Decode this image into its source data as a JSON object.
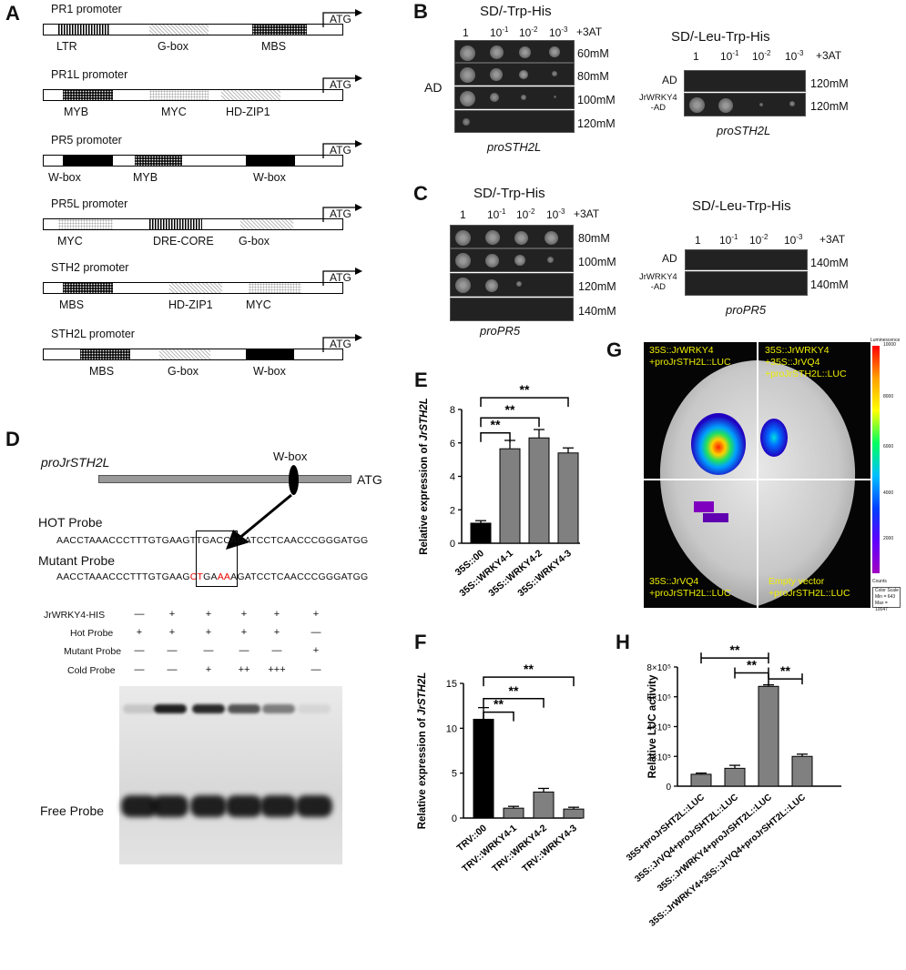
{
  "panels": {
    "A": "A",
    "B": "B",
    "C": "C",
    "D": "D",
    "E": "E",
    "F": "F",
    "G": "G",
    "H": "H"
  },
  "panelA": {
    "atg": "ATG",
    "promoters": [
      {
        "name": "PR1 promoter",
        "elements": [
          "LTR",
          "G-box",
          "MBS"
        ]
      },
      {
        "name": "PR1L promoter",
        "elements": [
          "MYB",
          "MYC",
          "HD-ZIP1"
        ]
      },
      {
        "name": "PR5 promoter",
        "elements": [
          "W-box",
          "MYB",
          "W-box"
        ]
      },
      {
        "name": "PR5L promoter",
        "elements": [
          "MYC",
          "DRE-CORE",
          "G-box"
        ]
      },
      {
        "name": "STH2 promoter",
        "elements": [
          "MBS",
          "HD-ZIP1",
          "MYC"
        ]
      },
      {
        "name": "STH2L promoter",
        "elements": [
          "MBS",
          "G-box",
          "W-box"
        ]
      }
    ]
  },
  "panelB": {
    "left_title": "SD/-Trp-His",
    "right_title": "SD/-Leu-Trp-His",
    "dilutions": [
      "1",
      "10",
      "10",
      "10"
    ],
    "dilution_exps": [
      "",
      "-1",
      "-2",
      "-3"
    ],
    "at_label": "+3AT",
    "ad_label": "AD",
    "left_conc": [
      "60mM",
      "80mM",
      "100mM",
      "120mM"
    ],
    "right_rows": [
      "AD",
      "JrWRKY4\n-AD"
    ],
    "right_conc": [
      "120mM",
      "120mM"
    ],
    "promoter": "proSTH2L"
  },
  "panelC": {
    "left_title": "SD/-Trp-His",
    "right_title": "SD/-Leu-Trp-His",
    "left_conc": [
      "80mM",
      "100mM",
      "120mM",
      "140mM"
    ],
    "right_rows": [
      "AD",
      "JrWRKY4\n-AD"
    ],
    "right_conc": [
      "140mM",
      "140mM"
    ],
    "promoter": "proPR5"
  },
  "panelD": {
    "promoter": "proJrSTH2L",
    "wbox": "W-box",
    "atg": "ATG",
    "hot_label": "HOT Probe",
    "mutant_label": "Mutant Probe",
    "hot_seq": [
      "AACCTAAACCCTTTGTGAAG",
      "TTGACC",
      "AGATCCTCAACCCGGGATGG"
    ],
    "mut_seq": [
      "AACCTAAACCCTTTGTGAAG",
      "CT",
      "GA",
      "AA",
      "AGATCCTCAACCCGGGATGG"
    ],
    "rows": [
      {
        "label": "JrWRKY4-HIS",
        "values": [
          "—",
          "+",
          "+",
          "+",
          "+",
          "+"
        ]
      },
      {
        "label": "Hot Probe",
        "values": [
          "+",
          "+",
          "+",
          "+",
          "+",
          "—"
        ]
      },
      {
        "label": "Mutant Probe",
        "values": [
          "—",
          "—",
          "—",
          "—",
          "—",
          "+"
        ]
      },
      {
        "label": "Cold Probe",
        "values": [
          "—",
          "—",
          "+",
          "++",
          "+++",
          "—"
        ]
      }
    ],
    "free_probe": "Free Probe"
  },
  "panelG": {
    "quadrants": [
      "35S::JrWRKY4",
      "+proJrSTH2L::LUC",
      "35S::JrWRKY4",
      "+35S::JrVQ4",
      "+proJrSTH2L::LUC",
      "35S::JrVQ4",
      "+proJrSTH2L::LUC",
      "Empty vector",
      "+proJrSTH2L::LUC"
    ],
    "scale_title": "Luminescence",
    "scale_ticks": [
      "10000",
      "8000",
      "6000",
      "4000",
      "2000"
    ],
    "scale_unit": "Counts",
    "scale_box": [
      "Color Scale",
      "Min = 643",
      "Max = 10047"
    ]
  },
  "chart_data": [
    {
      "panel": "E",
      "type": "bar",
      "categories": [
        "35S::00",
        "35S::WRKY4-1",
        "35S::WRKY4-2",
        "35S::WRKY4-3"
      ],
      "values": [
        1.2,
        5.65,
        6.3,
        5.4
      ],
      "errors": [
        0.15,
        0.5,
        0.5,
        0.3
      ],
      "colors": [
        "#000000",
        "#808080",
        "#808080",
        "#808080"
      ],
      "ylabel": "Relative expression of JrSTH2L",
      "ylim": [
        0,
        8
      ],
      "yticks": [
        0,
        2,
        4,
        6,
        8
      ],
      "significance": [
        "**",
        "**",
        "**"
      ]
    },
    {
      "panel": "F",
      "type": "bar",
      "categories": [
        "TRV::00",
        "TRV::WRKY4-1",
        "TRV::WRKY4-2",
        "TRV::WRKY4-3"
      ],
      "values": [
        11.0,
        1.1,
        2.9,
        1.0
      ],
      "errors": [
        1.3,
        0.2,
        0.4,
        0.2
      ],
      "colors": [
        "#000000",
        "#808080",
        "#808080",
        "#808080"
      ],
      "ylabel": "Relative expression of JrSTH2L",
      "ylim": [
        0,
        15
      ],
      "yticks": [
        0,
        5,
        10,
        15
      ],
      "significance": [
        "**",
        "**",
        "**"
      ]
    },
    {
      "panel": "H",
      "type": "bar",
      "categories": [
        "35S+proJrSHT2L::LUC",
        "35S::JrVQ4+proJrSHT2L::LUC",
        "35S::JrWRKY4+proJrSHT2L::LUC",
        "35S::JrWRKY4+35S::JrVQ4+proJrSHT2L::LUC"
      ],
      "values": [
        80000,
        120000,
        670000,
        200000
      ],
      "errors": [
        8000,
        20000,
        10000,
        15000
      ],
      "colors": [
        "#808080",
        "#808080",
        "#808080",
        "#808080"
      ],
      "ylabel": "Relative LUC activity",
      "ylim": [
        0,
        800000
      ],
      "yticks": [
        "0",
        "2×10⁵",
        "4×10⁵",
        "6×10⁵",
        "8×10⁵"
      ],
      "significance": [
        "**",
        "**",
        "**"
      ]
    }
  ]
}
